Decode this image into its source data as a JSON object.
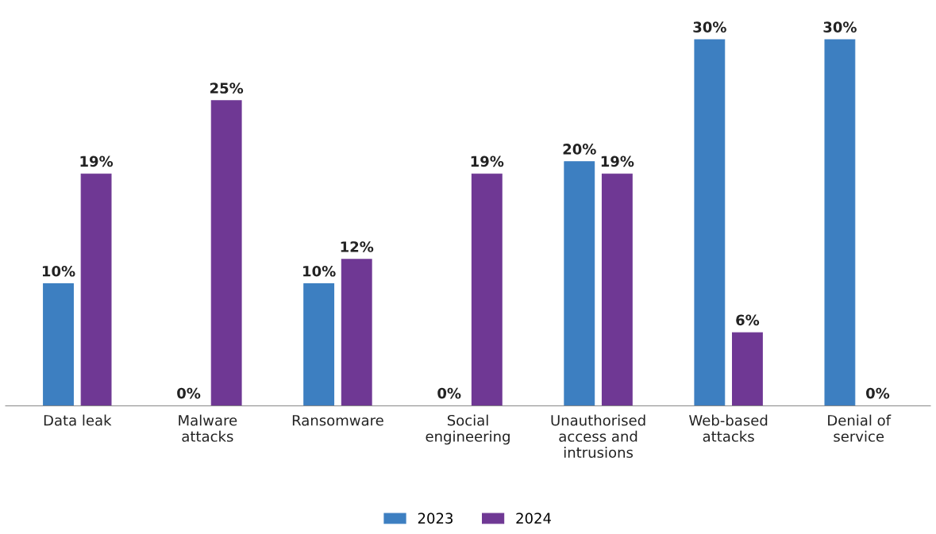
{
  "chart_data": {
    "type": "bar",
    "categories": [
      "Data leak",
      "Malware\nattacks",
      "Ransomware",
      "Social\nengineering",
      "Unauthorised\naccess and\nintrusions",
      "Web-based\nattacks",
      "Denial of\nservice"
    ],
    "series": [
      {
        "name": "2023",
        "color": "#3d7fc1",
        "values": [
          10,
          0,
          10,
          0,
          20,
          30,
          30
        ],
        "value_labels": [
          "10%",
          "0%",
          "10%",
          "0%",
          "20%",
          "30%",
          "30%"
        ]
      },
      {
        "name": "2024",
        "color": "#6f3894",
        "values": [
          19,
          25,
          12,
          19,
          19,
          6,
          0
        ],
        "value_labels": [
          "19%",
          "25%",
          "12%",
          "19%",
          "19%",
          "6%",
          "0%"
        ]
      }
    ],
    "legend": "bottom",
    "grid": false
  }
}
